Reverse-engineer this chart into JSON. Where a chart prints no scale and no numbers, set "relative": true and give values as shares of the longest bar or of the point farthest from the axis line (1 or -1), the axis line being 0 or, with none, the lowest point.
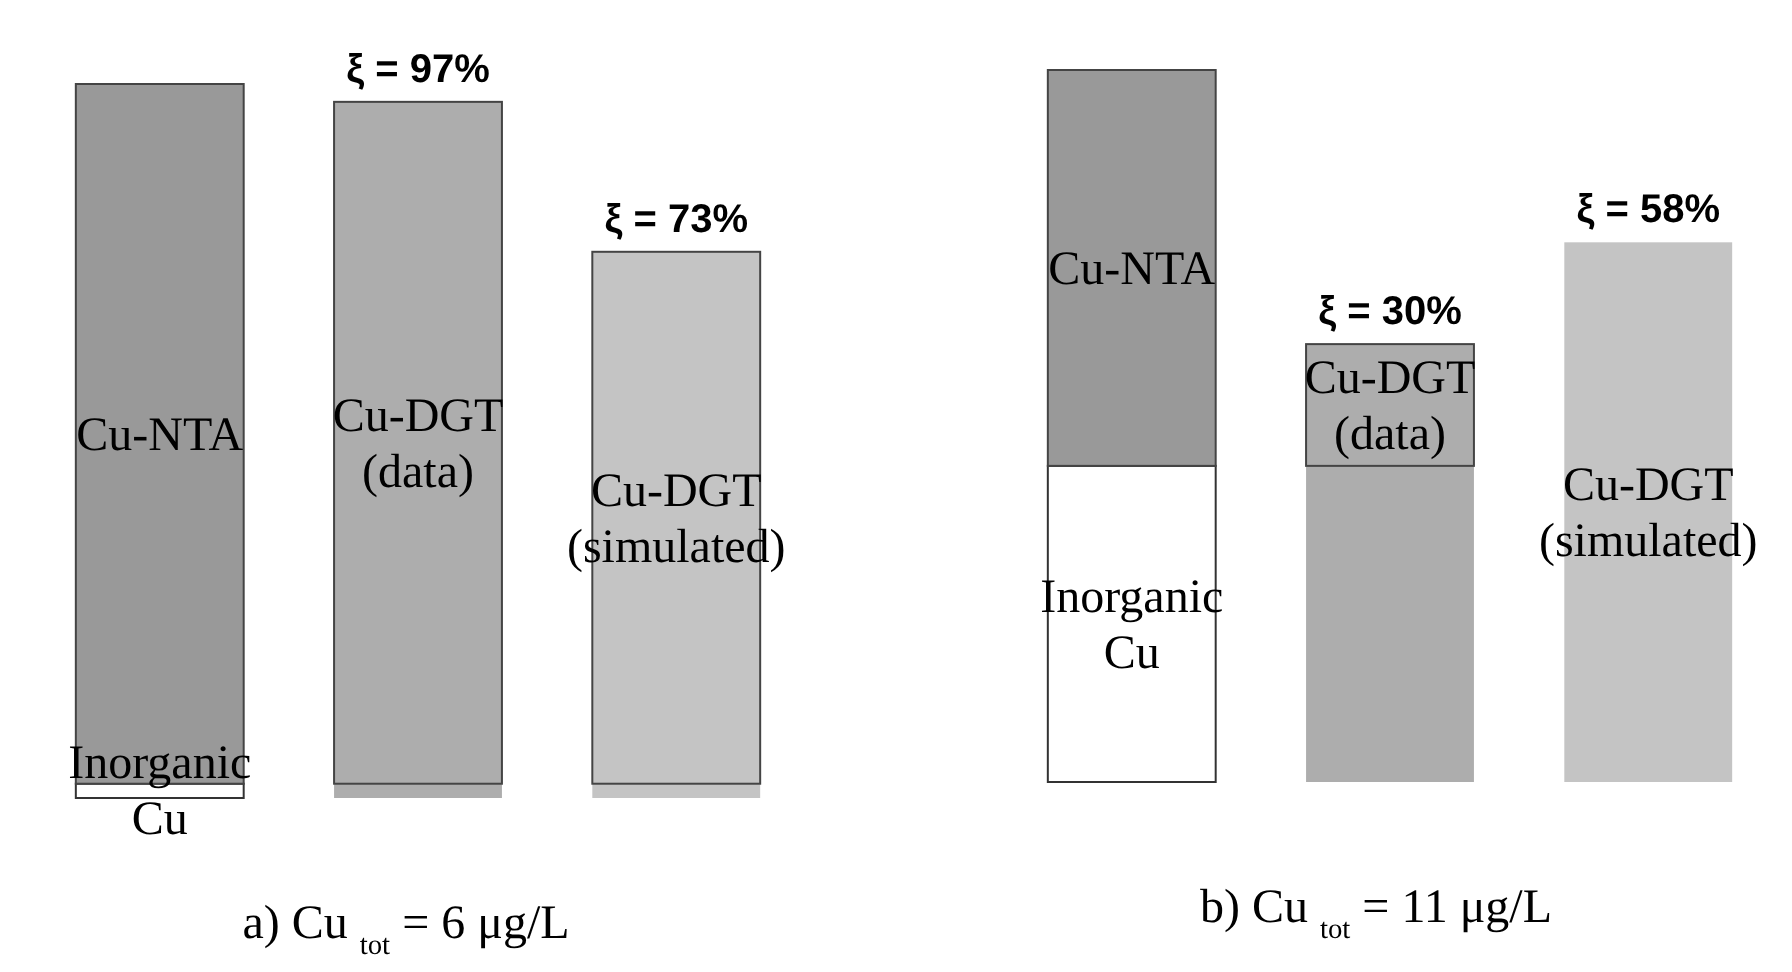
{
  "chart_data": [
    {
      "type": "bar",
      "stacked": true,
      "relative": true,
      "title": "a) Cu $_{tot}$ = 6 μg/L",
      "categories": [
        null,
        null,
        null
      ],
      "annotations": [
        "ξ = 97%",
        "ξ = 73%"
      ],
      "series": [
        {
          "name": "Inorganic Cu",
          "colors": [
            "#ffffff",
            "#adadad",
            "#c4c4c4"
          ],
          "values": [
            0.02,
            0.02,
            0.02
          ]
        },
        {
          "name": "Cu-NTA",
          "color": "#999999",
          "values": [
            0.98,
            null,
            null
          ]
        },
        {
          "name": "Cu-DGT (data)",
          "color": "#adadad",
          "values": [
            null,
            0.955,
            null
          ]
        },
        {
          "name": "Cu-DGT (simulated)",
          "color": "#c4c4c4",
          "values": [
            null,
            null,
            0.745
          ]
        }
      ]
    },
    {
      "type": "bar",
      "stacked": true,
      "relative": true,
      "title": "b) Cu $_{tot}$ = 11 μg/L",
      "categories": [
        null,
        null,
        null
      ],
      "annotations": [
        "ξ = 30%",
        "ξ = 58%"
      ],
      "series": [
        {
          "name": "Inorganic Cu",
          "colors": [
            "#ffffff",
            "#adadad",
            null
          ],
          "values": [
            0.444,
            0.444,
            null
          ]
        },
        {
          "name": "Cu-NTA",
          "color": "#999999",
          "values": [
            0.556,
            null,
            null
          ]
        },
        {
          "name": "Cu-DGT (data)",
          "color": "#adadad",
          "values": [
            null,
            0.171,
            null
          ]
        },
        {
          "name": "Cu-DGT (simulated)",
          "color": "#c4c4c4",
          "values": [
            null,
            null,
            0.758
          ]
        }
      ]
    }
  ]
}
